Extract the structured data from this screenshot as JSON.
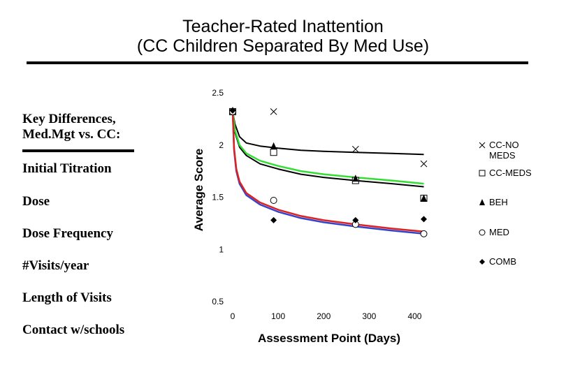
{
  "header": {
    "title_line1": "Teacher-Rated Inattention",
    "title_line2": "(CC Children Separated By Med Use)"
  },
  "sidebar": {
    "heading_line1": "Key Differences,",
    "heading_line2": "Med.Mgt vs. CC:",
    "items": [
      "Initial Titration",
      "Dose",
      "Dose Frequency",
      "#Visits/year",
      "Length of Visits",
      "Contact w/schools"
    ]
  },
  "chart_data": {
    "type": "scatter",
    "xlabel": "Assessment Point (Days)",
    "ylabel": "Average Score",
    "xlim": [
      0,
      420
    ],
    "ylim": [
      0.5,
      2.5
    ],
    "xticks": [
      0,
      100,
      200,
      300,
      400
    ],
    "yticks": [
      0.5,
      1,
      1.5,
      2,
      2.5
    ],
    "ytick_labels": [
      "0.5",
      "1",
      "1.5",
      "2",
      "2.5"
    ],
    "grid": false,
    "legend_position": "right",
    "series": [
      {
        "name": "CC-NO MEDS",
        "marker": "x",
        "color": "#000000",
        "points": [
          [
            0,
            2.32
          ],
          [
            90,
            2.32
          ],
          [
            270,
            1.96
          ],
          [
            420,
            1.82
          ]
        ],
        "fit": [
          [
            0,
            2.32
          ],
          [
            5,
            2.2
          ],
          [
            15,
            2.08
          ],
          [
            30,
            2.02
          ],
          [
            60,
            1.99
          ],
          [
            100,
            1.97
          ],
          [
            150,
            1.95
          ],
          [
            200,
            1.94
          ],
          [
            270,
            1.93
          ],
          [
            350,
            1.92
          ],
          [
            420,
            1.91
          ]
        ],
        "fit_color": "#000000"
      },
      {
        "name": "CC-MEDS",
        "marker": "square",
        "color": "#000000",
        "points": [
          [
            0,
            2.32
          ],
          [
            90,
            1.93
          ],
          [
            270,
            1.66
          ],
          [
            420,
            1.49
          ]
        ],
        "fit": [
          [
            0,
            2.32
          ],
          [
            5,
            2.12
          ],
          [
            15,
            1.98
          ],
          [
            30,
            1.9
          ],
          [
            60,
            1.82
          ],
          [
            100,
            1.77
          ],
          [
            150,
            1.72
          ],
          [
            200,
            1.69
          ],
          [
            270,
            1.66
          ],
          [
            350,
            1.63
          ],
          [
            420,
            1.6
          ]
        ],
        "fit_color": "#000000"
      },
      {
        "name": "BEH",
        "marker": "triangle",
        "color": "#000000",
        "points": [
          [
            0,
            2.33
          ],
          [
            90,
            1.99
          ],
          [
            270,
            1.68
          ],
          [
            420,
            1.49
          ]
        ],
        "fit": [
          [
            0,
            2.33
          ],
          [
            5,
            2.14
          ],
          [
            15,
            2.0
          ],
          [
            30,
            1.92
          ],
          [
            60,
            1.85
          ],
          [
            100,
            1.8
          ],
          [
            150,
            1.75
          ],
          [
            200,
            1.72
          ],
          [
            270,
            1.69
          ],
          [
            350,
            1.66
          ],
          [
            420,
            1.63
          ]
        ],
        "fit_color": "#33dd33"
      },
      {
        "name": "MED",
        "marker": "circle",
        "color": "#000000",
        "points": [
          [
            0,
            2.32
          ],
          [
            90,
            1.47
          ],
          [
            270,
            1.24
          ],
          [
            420,
            1.15
          ]
        ],
        "fit": [
          [
            0,
            2.32
          ],
          [
            3,
            1.95
          ],
          [
            8,
            1.75
          ],
          [
            15,
            1.63
          ],
          [
            30,
            1.52
          ],
          [
            60,
            1.43
          ],
          [
            100,
            1.36
          ],
          [
            150,
            1.3
          ],
          [
            200,
            1.26
          ],
          [
            270,
            1.22
          ],
          [
            350,
            1.18
          ],
          [
            420,
            1.15
          ]
        ],
        "fit_color": "#3344cc"
      },
      {
        "name": "COMB",
        "marker": "diamond",
        "color": "#000000",
        "points": [
          [
            0,
            2.33
          ],
          [
            90,
            1.28
          ],
          [
            270,
            1.28
          ],
          [
            420,
            1.29
          ]
        ],
        "fit": [
          [
            0,
            2.33
          ],
          [
            3,
            1.97
          ],
          [
            8,
            1.77
          ],
          [
            15,
            1.65
          ],
          [
            30,
            1.54
          ],
          [
            60,
            1.45
          ],
          [
            100,
            1.38
          ],
          [
            150,
            1.32
          ],
          [
            200,
            1.28
          ],
          [
            270,
            1.24
          ],
          [
            350,
            1.2
          ],
          [
            420,
            1.17
          ]
        ],
        "fit_color": "#dd2222"
      }
    ],
    "legend": [
      {
        "marker": "x",
        "lines": [
          "CC-NO",
          "MEDS"
        ]
      },
      {
        "marker": "square",
        "lines": [
          "CC-MEDS"
        ]
      },
      {
        "marker": "triangle",
        "lines": [
          "BEH"
        ]
      },
      {
        "marker": "circle",
        "lines": [
          "MED"
        ]
      },
      {
        "marker": "diamond",
        "lines": [
          "COMB"
        ]
      }
    ]
  }
}
